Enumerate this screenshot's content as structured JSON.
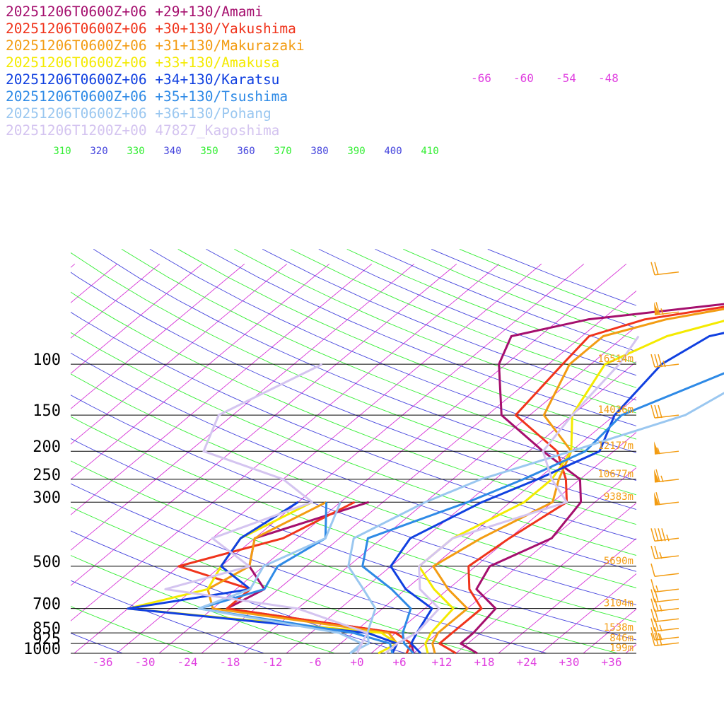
{
  "chart_data": {
    "type": "line",
    "subtype": "skew-t log-p sounding",
    "legend_position": "top-left",
    "series": [
      {
        "name": "20251206T0600Z+06 +29+130/Amami",
        "color": "#a50f6e",
        "temp": [
          [
            1000,
            17
          ],
          [
            925,
            13
          ],
          [
            850,
            13
          ],
          [
            700,
            12
          ],
          [
            600,
            6
          ],
          [
            500,
            4
          ],
          [
            400,
            8
          ],
          [
            300,
            6
          ],
          [
            250,
            2
          ],
          [
            200,
            -8
          ],
          [
            150,
            -20
          ],
          [
            100,
            -29
          ],
          [
            80,
            -32
          ],
          [
            70,
            -24
          ],
          [
            60,
            -3
          ],
          [
            50,
            8
          ],
          [
            45,
            16
          ]
        ],
        "dew": [
          [
            1000,
            8
          ],
          [
            925,
            6
          ],
          [
            850,
            2
          ],
          [
            700,
            -26
          ],
          [
            600,
            -24
          ],
          [
            500,
            -30
          ],
          [
            400,
            -34
          ],
          [
            300,
            -24
          ]
        ]
      },
      {
        "name": "20251206T0600Z+06 +30+130/Yakushima",
        "color": "#f0341c",
        "temp": [
          [
            1000,
            14
          ],
          [
            925,
            10
          ],
          [
            850,
            10
          ],
          [
            700,
            10
          ],
          [
            600,
            5
          ],
          [
            500,
            1
          ],
          [
            400,
            2
          ],
          [
            300,
            4
          ],
          [
            250,
            0
          ],
          [
            200,
            -6
          ],
          [
            150,
            -18
          ],
          [
            100,
            -20
          ],
          [
            80,
            -21
          ],
          [
            70,
            -16
          ],
          [
            60,
            -2
          ],
          [
            50,
            10
          ],
          [
            45,
            16
          ]
        ],
        "dew": [
          [
            1000,
            7
          ],
          [
            925,
            6
          ],
          [
            850,
            2
          ],
          [
            700,
            -26
          ],
          [
            600,
            -26
          ],
          [
            500,
            -40
          ],
          [
            400,
            -30
          ],
          [
            300,
            -26
          ]
        ]
      },
      {
        "name": "20251206T0600Z+06 +31+130/Makurazaki",
        "color": "#f39c12",
        "temp": [
          [
            1000,
            11
          ],
          [
            925,
            9
          ],
          [
            850,
            8
          ],
          [
            700,
            8
          ],
          [
            600,
            2
          ],
          [
            500,
            -4
          ],
          [
            400,
            -2
          ],
          [
            300,
            2
          ],
          [
            250,
            -1
          ],
          [
            200,
            -4
          ],
          [
            150,
            -14
          ],
          [
            100,
            -19
          ],
          [
            80,
            -19
          ],
          [
            70,
            -13
          ],
          [
            60,
            -1
          ],
          [
            50,
            10
          ],
          [
            45,
            16
          ]
        ],
        "dew": [
          [
            1000,
            5
          ],
          [
            925,
            4
          ],
          [
            850,
            1
          ],
          [
            700,
            -28
          ],
          [
            600,
            -32
          ],
          [
            500,
            -30
          ],
          [
            400,
            -34
          ],
          [
            300,
            -30
          ]
        ]
      },
      {
        "name": "20251206T0600Z+06 +33+130/Amakusa",
        "color": "#f4ea00",
        "temp": [
          [
            1000,
            10
          ],
          [
            925,
            8
          ],
          [
            850,
            7
          ],
          [
            700,
            6
          ],
          [
            600,
            0
          ],
          [
            500,
            -6
          ],
          [
            400,
            -6
          ],
          [
            300,
            -2
          ],
          [
            250,
            -2
          ],
          [
            200,
            -4
          ],
          [
            150,
            -10
          ],
          [
            100,
            -14
          ],
          [
            80,
            -10
          ],
          [
            70,
            -4
          ],
          [
            60,
            4
          ],
          [
            50,
            14
          ],
          [
            45,
            20
          ]
        ],
        "dew": [
          [
            1000,
            3
          ],
          [
            925,
            4
          ],
          [
            850,
            0
          ],
          [
            700,
            -40
          ],
          [
            600,
            -32
          ],
          [
            500,
            -34
          ],
          [
            400,
            -36
          ],
          [
            300,
            -32
          ]
        ]
      },
      {
        "name": "20251206T0600Z+06 +34+130/Karatsu",
        "color": "#1040e0",
        "temp": [
          [
            1000,
            9
          ],
          [
            925,
            6
          ],
          [
            850,
            5
          ],
          [
            700,
            3
          ],
          [
            600,
            -4
          ],
          [
            500,
            -10
          ],
          [
            400,
            -12
          ],
          [
            300,
            -8
          ],
          [
            250,
            -4
          ],
          [
            200,
            0
          ],
          [
            150,
            -4
          ],
          [
            100,
            -6
          ],
          [
            80,
            -4
          ],
          [
            70,
            4
          ],
          [
            60,
            10
          ],
          [
            50,
            15
          ],
          [
            45,
            17
          ]
        ],
        "dew": [
          [
            1000,
            5
          ],
          [
            925,
            4
          ],
          [
            850,
            -2
          ],
          [
            700,
            -40
          ],
          [
            600,
            -26
          ],
          [
            500,
            -34
          ],
          [
            400,
            -36
          ],
          [
            300,
            -34
          ]
        ]
      },
      {
        "name": "20251206T0600Z+06 +35+130/Tsushima",
        "color": "#2e8ae6",
        "temp": [
          [
            1000,
            8
          ],
          [
            925,
            5
          ],
          [
            850,
            3
          ],
          [
            700,
            0
          ],
          [
            600,
            -6
          ],
          [
            500,
            -14
          ],
          [
            400,
            -18
          ],
          [
            300,
            -10
          ],
          [
            250,
            -6
          ],
          [
            200,
            -2
          ],
          [
            150,
            -3
          ],
          [
            100,
            6
          ],
          [
            80,
            8
          ],
          [
            70,
            12
          ],
          [
            60,
            14
          ],
          [
            50,
            18
          ],
          [
            45,
            20
          ]
        ],
        "dew": [
          [
            1000,
            5
          ],
          [
            925,
            3
          ],
          [
            850,
            -4
          ],
          [
            700,
            -30
          ],
          [
            600,
            -24
          ],
          [
            500,
            -26
          ],
          [
            400,
            -24
          ],
          [
            300,
            -30
          ]
        ]
      },
      {
        "name": "20251206T0600Z+06 +36+130/Pohang",
        "color": "#9ac7f0",
        "temp": [
          [
            1000,
            -1
          ],
          [
            925,
            0
          ],
          [
            850,
            -2
          ],
          [
            700,
            -5
          ],
          [
            600,
            -10
          ],
          [
            500,
            -16
          ],
          [
            400,
            -20
          ],
          [
            300,
            -16
          ],
          [
            250,
            -12
          ],
          [
            200,
            -4
          ],
          [
            150,
            6
          ],
          [
            100,
            10
          ],
          [
            80,
            10
          ],
          [
            70,
            14
          ],
          [
            60,
            18
          ],
          [
            50,
            20
          ],
          [
            45,
            22
          ]
        ],
        "dew": [
          [
            1000,
            -1
          ],
          [
            925,
            -1
          ],
          [
            850,
            -6
          ],
          [
            700,
            -30
          ],
          [
            600,
            -26
          ],
          [
            500,
            -28
          ],
          [
            400,
            -24
          ],
          [
            300,
            -28
          ]
        ]
      },
      {
        "name": "20251206T1200Z+00 47827_Kagoshima",
        "color": "#d4c4f0",
        "temp": [
          [
            1000,
            4
          ],
          [
            925,
            4
          ],
          [
            850,
            5
          ],
          [
            700,
            4
          ],
          [
            600,
            -2
          ],
          [
            500,
            -6
          ],
          [
            400,
            -6
          ],
          [
            300,
            4
          ],
          [
            250,
            -2
          ],
          [
            200,
            -8
          ],
          [
            150,
            -10
          ],
          [
            100,
            -12
          ],
          [
            80,
            -14
          ]
        ],
        "dew": [
          [
            1000,
            0
          ],
          [
            925,
            -1
          ],
          [
            850,
            -2
          ],
          [
            700,
            -16
          ],
          [
            600,
            -38
          ],
          [
            500,
            -30
          ],
          [
            400,
            -40
          ],
          [
            300,
            -32
          ],
          [
            250,
            -40
          ],
          [
            200,
            -56
          ],
          [
            150,
            -60
          ],
          [
            100,
            -54
          ]
        ]
      }
    ],
    "x_axis": {
      "label": "",
      "ticks": [
        "-36",
        "-30",
        "-24",
        "-18",
        "-12",
        "-6",
        "+0",
        "+6",
        "+12",
        "+18",
        "+24",
        "+30",
        "+36"
      ],
      "tick_values": [
        -36,
        -30,
        -24,
        -18,
        -12,
        -6,
        0,
        6,
        12,
        18,
        24,
        30,
        36
      ]
    },
    "y_axis": {
      "label": "",
      "ticks": [
        "100",
        "150",
        "200",
        "250",
        "300",
        "500",
        "700",
        "850",
        "925",
        "1000"
      ],
      "tick_values": [
        100,
        150,
        200,
        250,
        300,
        500,
        700,
        850,
        925,
        1000
      ],
      "scale": "log"
    },
    "height_labels": [
      {
        "p": 100,
        "text": "16514m"
      },
      {
        "p": 150,
        "text": "14036m"
      },
      {
        "p": 200,
        "text": "12177m"
      },
      {
        "p": 250,
        "text": "10677m"
      },
      {
        "p": 300,
        "text": "9383m"
      },
      {
        "p": 500,
        "text": "5690m"
      },
      {
        "p": 700,
        "text": "3104m"
      },
      {
        "p": 850,
        "text": "1538m"
      },
      {
        "p": 925,
        "text": "846m"
      },
      {
        "p": 1000,
        "text": "199m"
      }
    ],
    "theta_labels": [
      {
        "text": "310",
        "color": "#33ee33"
      },
      {
        "text": "320",
        "color": "#4444dd"
      },
      {
        "text": "330",
        "color": "#33ee33"
      },
      {
        "text": "340",
        "color": "#4444dd"
      },
      {
        "text": "350",
        "color": "#33ee33"
      },
      {
        "text": "360",
        "color": "#4444dd"
      },
      {
        "text": "370",
        "color": "#33ee33"
      },
      {
        "text": "380",
        "color": "#4444dd"
      },
      {
        "text": "390",
        "color": "#33ee33"
      },
      {
        "text": "400",
        "color": "#4444dd"
      },
      {
        "text": "410",
        "color": "#33ee33"
      }
    ],
    "upper_temp_labels": [
      "-66",
      "-60",
      "-54",
      "-48"
    ],
    "upper_temp_values": [
      -66,
      -60,
      -54,
      -48
    ],
    "wind_barb_levels": [
      48,
      66,
      100,
      150,
      200,
      250,
      300,
      400,
      460,
      530,
      600,
      650,
      700,
      760,
      820,
      880,
      920
    ],
    "wind_barb_speeds_kt": [
      20,
      65,
      35,
      30,
      55,
      65,
      60,
      45,
      25,
      10,
      15,
      20,
      25,
      20,
      25,
      25,
      30
    ],
    "colors": {
      "isotherm": "#d633d6",
      "isobar": "#000000",
      "dry_adiabat": "#33ee33",
      "moist_adiabat": "#4444dd",
      "axis_label": "#e040e0",
      "height_label": "#f39c12",
      "barb": "#f39c12"
    }
  }
}
